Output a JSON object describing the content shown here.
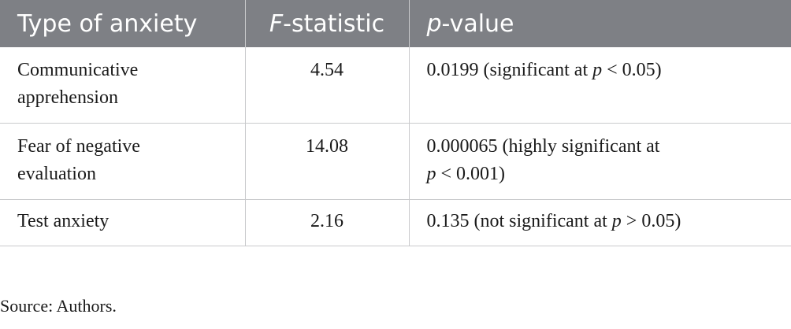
{
  "table": {
    "headers": {
      "type": "Type of anxiety",
      "f_letter": "F",
      "f_rest": "-statistic",
      "p_letter": "p",
      "p_rest": "-value"
    },
    "rows": [
      {
        "type_line1": "Communicative",
        "type_line2": "apprehension",
        "f": "4.54",
        "p_line1": "0.0199 (significant at ",
        "p_sym": "p",
        "p_line1_end": " < 0.05)",
        "p_line2_pre": "",
        "p_line2_sym": "",
        "p_line2_end": ""
      },
      {
        "type_line1": "Fear of negative",
        "type_line2": "evaluation",
        "f": "14.08",
        "p_line1": "0.000065 (highly significant at",
        "p_sym": "",
        "p_line1_end": "",
        "p_line2_pre": "",
        "p_line2_sym": "p",
        "p_line2_end": " < 0.001)"
      },
      {
        "type_line1": "Test anxiety",
        "type_line2": "",
        "f": "2.16",
        "p_line1": "0.135 (not significant at ",
        "p_sym": "p",
        "p_line1_end": " > 0.05)",
        "p_line2_pre": "",
        "p_line2_sym": "",
        "p_line2_end": ""
      }
    ]
  },
  "source_note": "Source: Authors."
}
